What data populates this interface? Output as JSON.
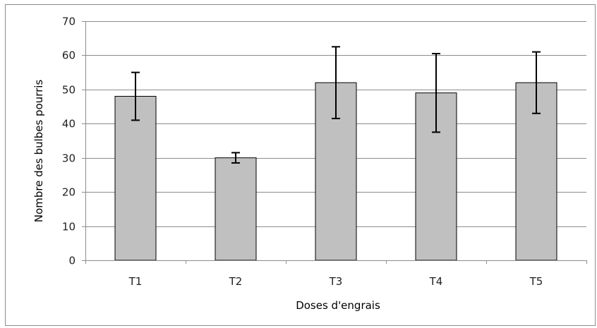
{
  "chart_data": {
    "type": "bar",
    "title": "",
    "xlabel": "Doses d'engrais",
    "ylabel": "Nombre des bulbes pourris",
    "categories": [
      "T1",
      "T2",
      "T3",
      "T4",
      "T5"
    ],
    "values": [
      48,
      30,
      52,
      49,
      52
    ],
    "error_low": [
      41,
      28.5,
      41.5,
      37.5,
      43
    ],
    "error_high": [
      55,
      31.5,
      62.5,
      60.5,
      61
    ],
    "ylim": [
      0,
      70
    ],
    "yticks": [
      "0",
      "10",
      "20",
      "30",
      "40",
      "50",
      "60",
      "70"
    ],
    "grid": true,
    "legend": "none",
    "colors": {
      "bar_fill": "#c0c0c0",
      "bar_stroke": "#000000",
      "grid": "#8c8c8c",
      "error_bar": "#000000"
    }
  }
}
